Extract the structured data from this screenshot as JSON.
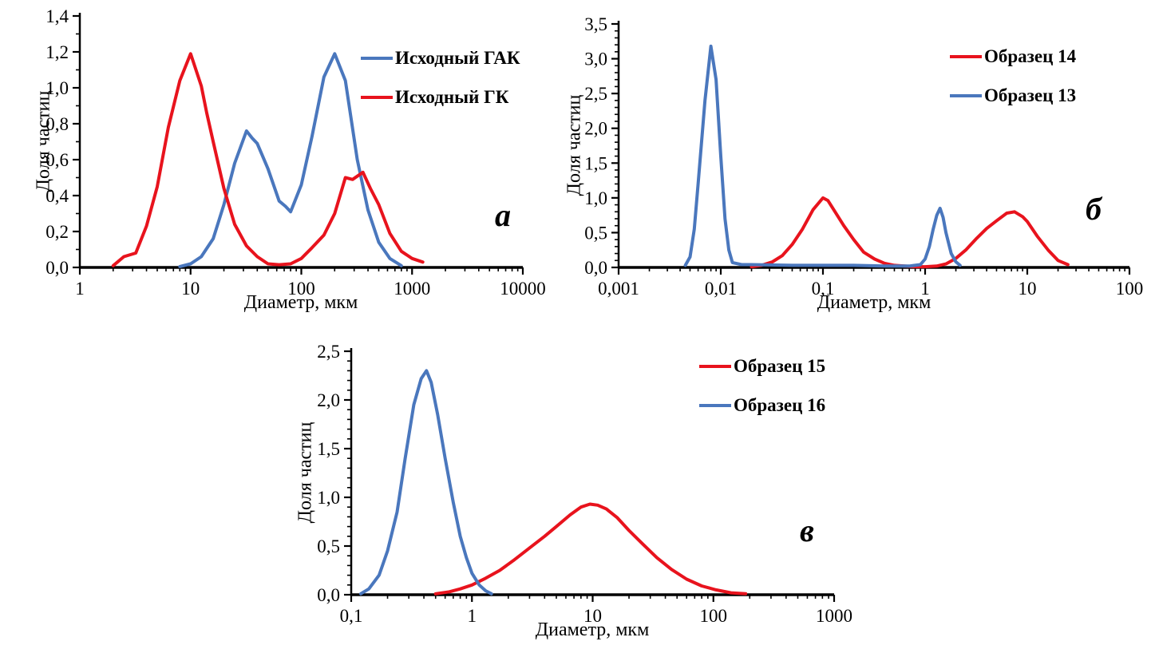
{
  "colors": {
    "blue": "#4a77bd",
    "red": "#e8131d",
    "axis": "#000000",
    "text": "#000000"
  },
  "chart_data": [
    {
      "id": "a",
      "type": "line",
      "panel_label": "а",
      "xlabel": "Диаметр, мкм",
      "ylabel": "Доля частиц",
      "x_scale": "log",
      "grid": false,
      "legend_position": "top-right",
      "xlim": [
        1,
        10000
      ],
      "ylim": [
        0,
        1.4
      ],
      "y_major_step": 0.2,
      "y_minor_step": 0.1,
      "y_tick_labels": [
        "0,0",
        "0,2",
        "0,4",
        "0,6",
        "0,8",
        "1,0",
        "1,2",
        "1,4"
      ],
      "x_tick_values": [
        1,
        10,
        100,
        1000,
        10000
      ],
      "x_tick_labels": [
        "1",
        "10",
        "100",
        "1000",
        "10000"
      ],
      "legend": [
        {
          "label": "Исходный ГАК",
          "color_key": "blue"
        },
        {
          "label": "Исходный ГК",
          "color_key": "red"
        }
      ],
      "series": [
        {
          "name": "Исходный ГАК",
          "color_key": "blue",
          "points": [
            [
              8,
              0.005
            ],
            [
              10,
              0.02
            ],
            [
              12.5,
              0.06
            ],
            [
              16,
              0.16
            ],
            [
              20,
              0.35
            ],
            [
              25,
              0.58
            ],
            [
              32,
              0.76
            ],
            [
              36,
              0.72
            ],
            [
              40,
              0.69
            ],
            [
              50,
              0.55
            ],
            [
              63,
              0.37
            ],
            [
              72,
              0.34
            ],
            [
              80,
              0.31
            ],
            [
              100,
              0.46
            ],
            [
              125,
              0.73
            ],
            [
              160,
              1.06
            ],
            [
              200,
              1.19
            ],
            [
              250,
              1.04
            ],
            [
              320,
              0.6
            ],
            [
              400,
              0.32
            ],
            [
              500,
              0.14
            ],
            [
              630,
              0.05
            ],
            [
              800,
              0.01
            ]
          ]
        },
        {
          "name": "Исходный ГК",
          "color_key": "red",
          "points": [
            [
              2,
              0.01
            ],
            [
              2.5,
              0.06
            ],
            [
              3.2,
              0.08
            ],
            [
              4,
              0.23
            ],
            [
              5,
              0.45
            ],
            [
              6.3,
              0.78
            ],
            [
              8,
              1.04
            ],
            [
              10,
              1.19
            ],
            [
              12.5,
              1.01
            ],
            [
              14,
              0.86
            ],
            [
              16,
              0.7
            ],
            [
              20,
              0.44
            ],
            [
              25,
              0.24
            ],
            [
              32,
              0.12
            ],
            [
              40,
              0.06
            ],
            [
              50,
              0.02
            ],
            [
              63,
              0.015
            ],
            [
              80,
              0.02
            ],
            [
              100,
              0.05
            ],
            [
              125,
              0.11
            ],
            [
              160,
              0.18
            ],
            [
              200,
              0.3
            ],
            [
              250,
              0.5
            ],
            [
              290,
              0.49
            ],
            [
              360,
              0.53
            ],
            [
              420,
              0.44
            ],
            [
              500,
              0.35
            ],
            [
              630,
              0.19
            ],
            [
              800,
              0.09
            ],
            [
              1000,
              0.05
            ],
            [
              1250,
              0.03
            ]
          ]
        }
      ]
    },
    {
      "id": "b",
      "type": "line",
      "panel_label": "б",
      "xlabel": "Диаметр, мкм",
      "ylabel": "Доля частиц",
      "x_scale": "log",
      "grid": false,
      "legend_position": "top-right",
      "xlim": [
        0.001,
        100
      ],
      "ylim": [
        0,
        3.5
      ],
      "y_major_step": 0.5,
      "y_minor_step": 0.1,
      "y_tick_labels": [
        "0,0",
        "0,5",
        "1,0",
        "1,5",
        "2,0",
        "2,5",
        "3,0",
        "3,5"
      ],
      "x_tick_values": [
        0.001,
        0.01,
        0.1,
        1,
        10,
        100
      ],
      "x_tick_labels": [
        "0,001",
        "0,01",
        "0,1",
        "1",
        "10",
        "100"
      ],
      "legend": [
        {
          "label": "Образец 14",
          "color_key": "red"
        },
        {
          "label": "Образец 13",
          "color_key": "blue"
        }
      ],
      "series": [
        {
          "name": "Образец 14",
          "color_key": "red",
          "points": [
            [
              0.02,
              0.01
            ],
            [
              0.025,
              0.03
            ],
            [
              0.032,
              0.08
            ],
            [
              0.04,
              0.17
            ],
            [
              0.05,
              0.33
            ],
            [
              0.063,
              0.55
            ],
            [
              0.08,
              0.83
            ],
            [
              0.1,
              1.0
            ],
            [
              0.112,
              0.96
            ],
            [
              0.125,
              0.85
            ],
            [
              0.16,
              0.6
            ],
            [
              0.2,
              0.4
            ],
            [
              0.25,
              0.22
            ],
            [
              0.32,
              0.12
            ],
            [
              0.4,
              0.06
            ],
            [
              0.5,
              0.03
            ],
            [
              0.63,
              0.02
            ],
            [
              0.8,
              0.01
            ],
            [
              1.0,
              0.01
            ],
            [
              1.3,
              0.02
            ],
            [
              1.6,
              0.05
            ],
            [
              2,
              0.13
            ],
            [
              2.5,
              0.25
            ],
            [
              3.2,
              0.42
            ],
            [
              4,
              0.56
            ],
            [
              5,
              0.67
            ],
            [
              6.3,
              0.78
            ],
            [
              7.5,
              0.8
            ],
            [
              9,
              0.73
            ],
            [
              10,
              0.66
            ],
            [
              12.5,
              0.45
            ],
            [
              16,
              0.25
            ],
            [
              20,
              0.1
            ],
            [
              25,
              0.04
            ]
          ]
        },
        {
          "name": "Образец 13",
          "color_key": "blue",
          "points": [
            [
              0.0045,
              0.03
            ],
            [
              0.005,
              0.15
            ],
            [
              0.0055,
              0.55
            ],
            [
              0.006,
              1.2
            ],
            [
              0.007,
              2.4
            ],
            [
              0.008,
              3.18
            ],
            [
              0.009,
              2.7
            ],
            [
              0.01,
              1.6
            ],
            [
              0.011,
              0.7
            ],
            [
              0.012,
              0.25
            ],
            [
              0.013,
              0.07
            ],
            [
              0.016,
              0.04
            ],
            [
              0.02,
              0.04
            ],
            [
              0.05,
              0.03
            ],
            [
              0.1,
              0.03
            ],
            [
              0.2,
              0.03
            ],
            [
              0.4,
              0.02
            ],
            [
              0.7,
              0.02
            ],
            [
              0.9,
              0.04
            ],
            [
              1.0,
              0.12
            ],
            [
              1.1,
              0.3
            ],
            [
              1.2,
              0.55
            ],
            [
              1.3,
              0.75
            ],
            [
              1.4,
              0.85
            ],
            [
              1.5,
              0.72
            ],
            [
              1.6,
              0.5
            ],
            [
              1.8,
              0.2
            ],
            [
              2.0,
              0.08
            ],
            [
              2.2,
              0.03
            ]
          ]
        }
      ]
    },
    {
      "id": "v",
      "type": "line",
      "panel_label": "в",
      "xlabel": "Диаметр, мкм",
      "ylabel": "Доля частиц",
      "x_scale": "log",
      "grid": false,
      "legend_position": "top-right",
      "xlim": [
        0.1,
        1000
      ],
      "ylim": [
        0,
        2.5
      ],
      "y_major_step": 0.5,
      "y_minor_step": 0.1,
      "y_tick_labels": [
        "0,0",
        "0,5",
        "1,0",
        "1,5",
        "2,0",
        "2,5"
      ],
      "x_tick_values": [
        0.1,
        1,
        10,
        100,
        1000
      ],
      "x_tick_labels": [
        "0,1",
        "1",
        "10",
        "100",
        "1000"
      ],
      "legend": [
        {
          "label": "Образец 15",
          "color_key": "red"
        },
        {
          "label": "Образец 16",
          "color_key": "blue"
        }
      ],
      "series": [
        {
          "name": "Образец 15",
          "color_key": "red",
          "points": [
            [
              0.5,
              0.01
            ],
            [
              0.65,
              0.03
            ],
            [
              0.8,
              0.06
            ],
            [
              1.0,
              0.1
            ],
            [
              1.3,
              0.17
            ],
            [
              1.7,
              0.25
            ],
            [
              2.2,
              0.35
            ],
            [
              3,
              0.48
            ],
            [
              4,
              0.6
            ],
            [
              5,
              0.7
            ],
            [
              6.5,
              0.82
            ],
            [
              8,
              0.9
            ],
            [
              9.5,
              0.93
            ],
            [
              11,
              0.92
            ],
            [
              13,
              0.88
            ],
            [
              16,
              0.79
            ],
            [
              20,
              0.66
            ],
            [
              26,
              0.52
            ],
            [
              34,
              0.38
            ],
            [
              45,
              0.26
            ],
            [
              60,
              0.16
            ],
            [
              80,
              0.09
            ],
            [
              105,
              0.05
            ],
            [
              140,
              0.02
            ],
            [
              185,
              0.01
            ]
          ]
        },
        {
          "name": "Образец 16",
          "color_key": "blue",
          "points": [
            [
              0.12,
              0.01
            ],
            [
              0.14,
              0.06
            ],
            [
              0.17,
              0.2
            ],
            [
              0.2,
              0.45
            ],
            [
              0.24,
              0.85
            ],
            [
              0.28,
              1.4
            ],
            [
              0.33,
              1.95
            ],
            [
              0.38,
              2.22
            ],
            [
              0.42,
              2.3
            ],
            [
              0.46,
              2.18
            ],
            [
              0.52,
              1.85
            ],
            [
              0.6,
              1.4
            ],
            [
              0.7,
              0.95
            ],
            [
              0.8,
              0.6
            ],
            [
              0.9,
              0.38
            ],
            [
              1.0,
              0.22
            ],
            [
              1.15,
              0.1
            ],
            [
              1.3,
              0.04
            ],
            [
              1.45,
              0.01
            ]
          ]
        }
      ]
    }
  ]
}
